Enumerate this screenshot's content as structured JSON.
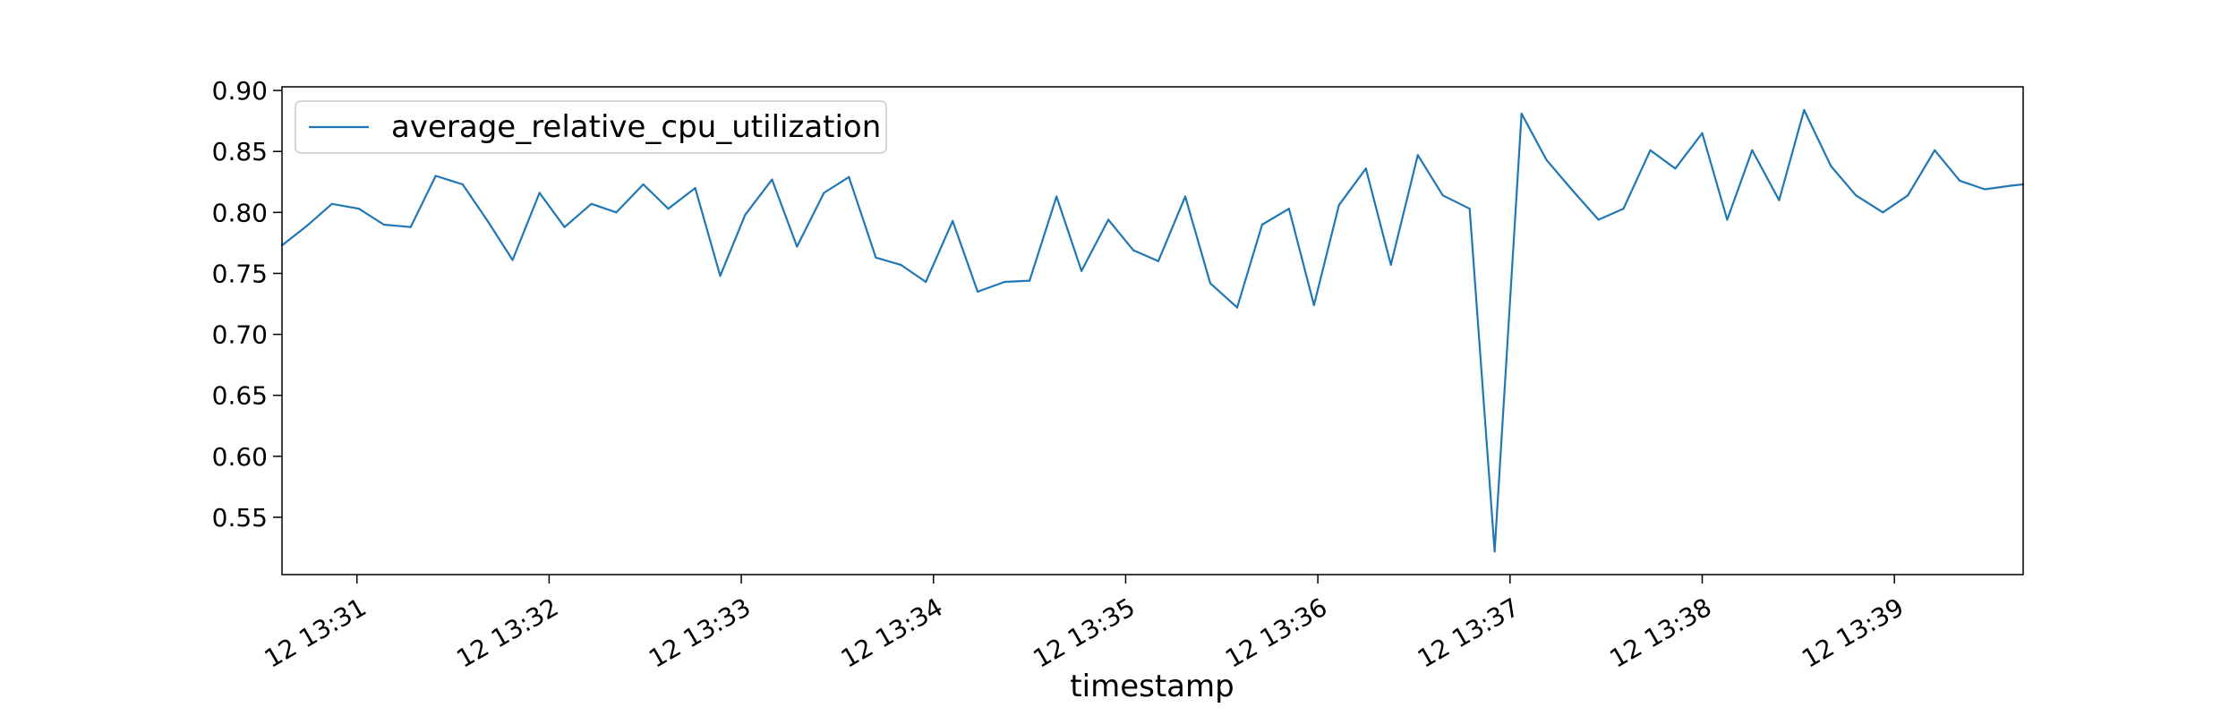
{
  "chart_data": {
    "type": "line",
    "xlabel": "timestamp",
    "ylabel": "",
    "title": "",
    "ylim": [
      0.503,
      0.903
    ],
    "yticks": [
      "0.55",
      "0.60",
      "0.65",
      "0.70",
      "0.75",
      "0.80",
      "0.85",
      "0.90"
    ],
    "xticks": [
      "12 13:31",
      "12 13:32",
      "12 13:33",
      "12 13:34",
      "12 13:35",
      "12 13:36",
      "12 13:37",
      "12 13:38",
      "12 13:39"
    ],
    "xlim_minutes": [
      30.61,
      39.67
    ],
    "legend": {
      "position": "top-left"
    },
    "grid": false,
    "series": [
      {
        "name": "average_relative_cpu_utilization",
        "color": "#1f77b4",
        "x_minutes": [
          30.61,
          30.74,
          30.87,
          31.01,
          31.14,
          31.28,
          31.41,
          31.55,
          31.68,
          31.81,
          31.95,
          32.08,
          32.22,
          32.35,
          32.49,
          32.62,
          32.76,
          32.89,
          33.02,
          33.16,
          33.29,
          33.43,
          33.56,
          33.7,
          33.83,
          33.96,
          34.1,
          34.23,
          34.37,
          34.5,
          34.64,
          34.77,
          34.91,
          35.04,
          35.17,
          35.31,
          35.44,
          35.58,
          35.71,
          35.85,
          35.98,
          36.11,
          36.25,
          36.38,
          36.52,
          36.65,
          36.79,
          36.92,
          37.06,
          37.19,
          37.32,
          37.46,
          37.59,
          37.73,
          37.86,
          38.0,
          38.13,
          38.26,
          38.4,
          38.53,
          38.67,
          38.8,
          38.94,
          39.07,
          39.21,
          39.34,
          39.47,
          39.61,
          39.67
        ],
        "values": [
          0.773,
          0.789,
          0.807,
          0.803,
          0.79,
          0.788,
          0.83,
          0.823,
          0.793,
          0.761,
          0.816,
          0.788,
          0.807,
          0.8,
          0.823,
          0.803,
          0.82,
          0.748,
          0.798,
          0.827,
          0.772,
          0.816,
          0.829,
          0.763,
          0.757,
          0.743,
          0.793,
          0.735,
          0.743,
          0.744,
          0.813,
          0.752,
          0.794,
          0.769,
          0.76,
          0.813,
          0.742,
          0.722,
          0.79,
          0.803,
          0.724,
          0.806,
          0.836,
          0.757,
          0.847,
          0.814,
          0.803,
          0.522,
          0.881,
          0.843,
          0.819,
          0.794,
          0.803,
          0.851,
          0.836,
          0.865,
          0.794,
          0.851,
          0.81,
          0.884,
          0.838,
          0.814,
          0.8,
          0.814,
          0.851,
          0.826,
          0.819,
          0.822,
          0.823
        ]
      }
    ]
  }
}
